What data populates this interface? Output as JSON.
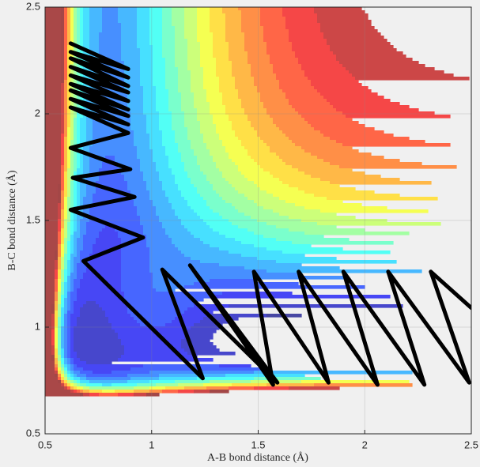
{
  "chart_data": {
    "type": "line",
    "xlabel": "A-B bond distance (Å)",
    "ylabel": "B-C bond distance (Å)",
    "xlim": [
      0.5,
      2.5
    ],
    "ylim": [
      0.5,
      2.5
    ],
    "xticks": [
      0.5,
      1,
      1.5,
      2,
      2.5
    ],
    "yticks": [
      0.5,
      1,
      1.5,
      2,
      2.5
    ],
    "grid": true,
    "x": [
      0.62,
      0.89,
      0.62,
      0.89,
      0.62,
      0.89,
      0.62,
      0.89,
      0.62,
      0.89,
      0.62,
      0.89,
      0.62,
      0.89,
      0.62,
      0.89,
      0.62,
      0.89,
      0.62,
      0.9,
      0.63,
      0.92,
      0.62,
      0.96,
      0.68,
      1.24,
      1.05,
      1.59,
      1.18,
      1.57,
      1.48,
      1.83,
      1.69,
      2.06,
      1.9,
      2.28,
      2.11,
      2.49,
      2.31,
      2.5
    ],
    "series": [
      {
        "color": "#000000",
        "values": [
          2.33,
          2.21,
          2.29,
          2.17,
          2.26,
          2.13,
          2.22,
          2.1,
          2.18,
          2.06,
          2.14,
          2.02,
          2.11,
          1.99,
          2.07,
          1.95,
          2.03,
          1.91,
          1.84,
          1.74,
          1.7,
          1.61,
          1.55,
          1.42,
          1.31,
          0.76,
          1.27,
          0.74,
          1.29,
          0.73,
          1.26,
          0.74,
          1.26,
          0.73,
          1.26,
          0.73,
          1.26,
          0.74,
          1.26,
          1.09
        ]
      }
    ]
  }
}
